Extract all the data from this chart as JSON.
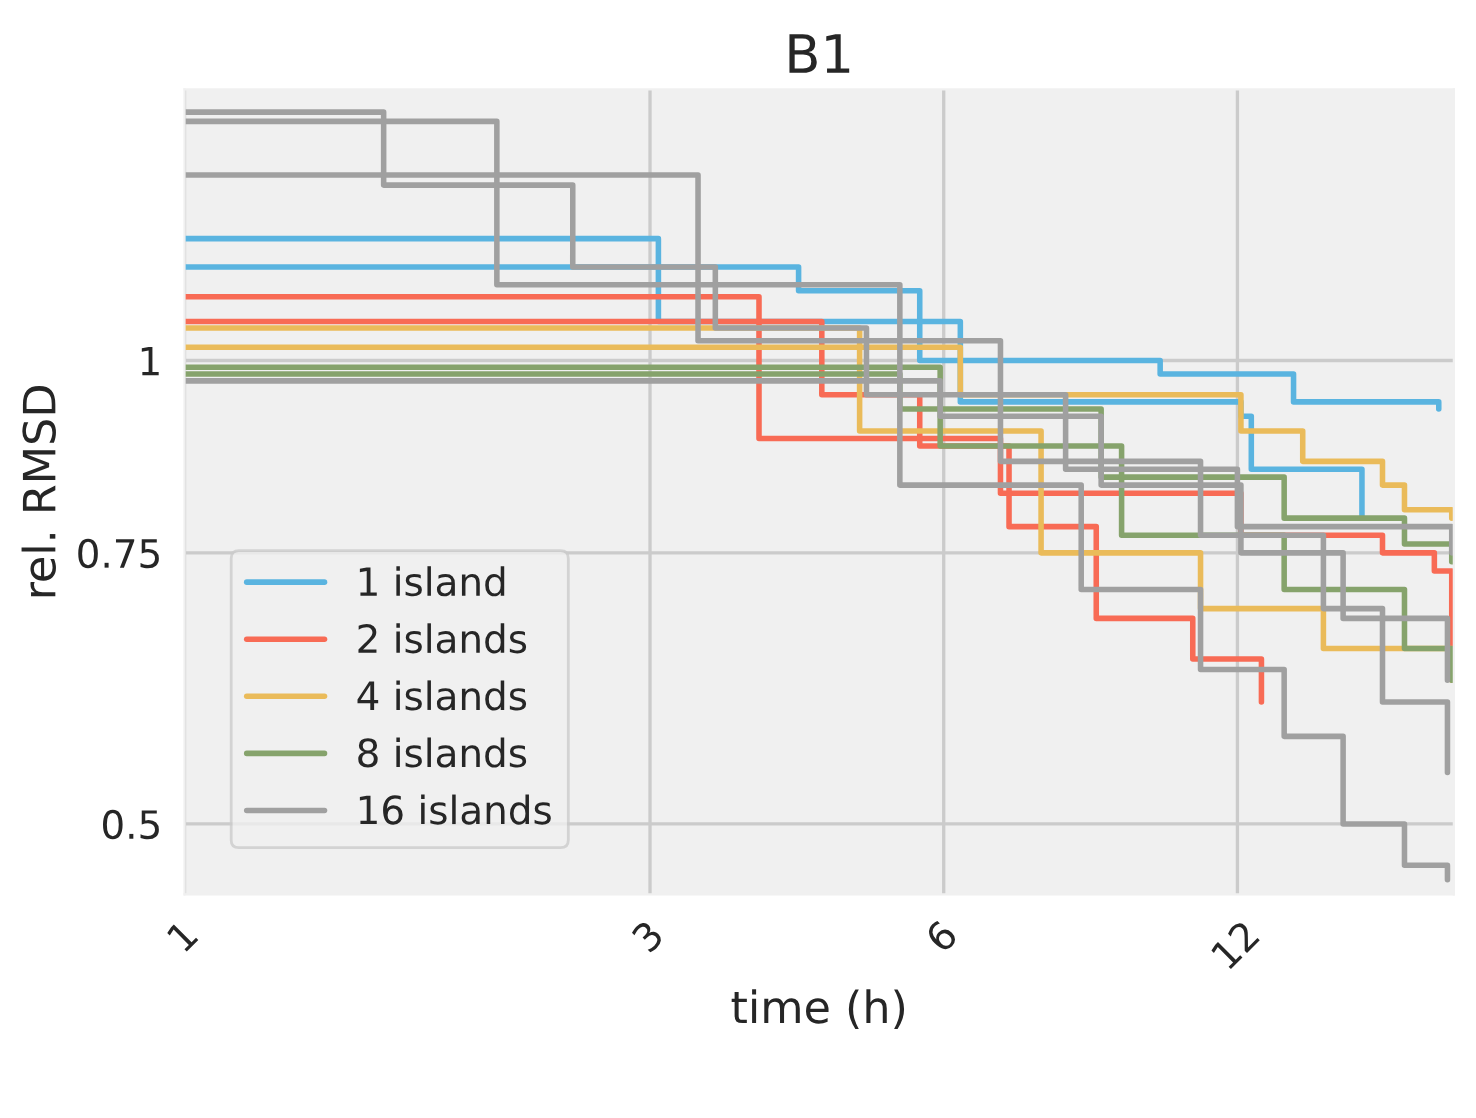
{
  "chart_data": {
    "type": "step",
    "title": "B1",
    "xlabel": "time (h)",
    "ylabel": "rel. RMSD",
    "log": "xy",
    "grid": true,
    "legend": "bottom left",
    "xlim": [
      1,
      20
    ],
    "ylim": [
      0.45,
      1.5
    ],
    "xticks": [
      1,
      3,
      6,
      12
    ],
    "yticks": [
      0.5,
      0.75,
      1
    ],
    "series": [
      {
        "name": "1 island",
        "color": "#5ab4e0",
        "x": [
          1,
          4.26,
          5.67,
          10.0,
          13.7,
          19.3
        ],
        "values": [
          1.15,
          1.11,
          1.0,
          0.98,
          0.94,
          0.93
        ]
      },
      {
        "color": "#5ab4e0",
        "x": [
          1,
          3.06,
          6.24,
          12.1,
          12.4,
          16.1
        ],
        "values": [
          1.2,
          1.06,
          0.94,
          0.92,
          0.85,
          0.79
        ]
      },
      {
        "name": "2 islands",
        "color": "#f86b55",
        "x": [
          1,
          3.88,
          6.86,
          12.1,
          16.9,
          19.1,
          19.9
        ],
        "values": [
          1.1,
          0.89,
          0.82,
          0.77,
          0.75,
          0.73,
          0.65
        ]
      },
      {
        "color": "#f86b55",
        "x": [
          1,
          4.5,
          5.67,
          7.0,
          8.6,
          10.8,
          12.7
        ],
        "values": [
          1.06,
          0.95,
          0.88,
          0.78,
          0.68,
          0.64,
          0.6
        ]
      },
      {
        "name": "4 islands",
        "color": "#eabb5a",
        "x": [
          1,
          6.24,
          12.1,
          14.0,
          16.9,
          17.8,
          19.9
        ],
        "values": [
          1.02,
          0.95,
          0.9,
          0.86,
          0.83,
          0.8,
          0.79
        ]
      },
      {
        "color": "#eabb5a",
        "x": [
          1,
          4.92,
          7.55,
          11.0,
          14.7,
          19.9
        ],
        "values": [
          1.05,
          0.9,
          0.75,
          0.69,
          0.65,
          0.62
        ]
      },
      {
        "name": "8 islands",
        "color": "#86a36c",
        "x": [
          1,
          5.41,
          8.7,
          13.4,
          17.8,
          19.9
        ],
        "values": [
          0.98,
          0.93,
          0.84,
          0.79,
          0.76,
          0.74
        ]
      },
      {
        "color": "#86a36c",
        "x": [
          1,
          5.95,
          9.13,
          13.4,
          17.8,
          19.9
        ],
        "values": [
          0.99,
          0.88,
          0.77,
          0.71,
          0.65,
          0.62
        ]
      },
      {
        "name": "16 islands",
        "color": "#a0a0a0",
        "x": [
          1,
          2.09,
          5.41,
          8.3,
          11.0,
          13.4,
          15.4,
          17.8,
          19.7
        ],
        "values": [
          1.43,
          1.12,
          0.83,
          0.71,
          0.63,
          0.57,
          0.5,
          0.47,
          0.46
        ]
      },
      {
        "color": "#a0a0a0",
        "x": [
          1,
          3.36,
          6.86,
          11.0,
          14.7,
          16.9,
          19.7
        ],
        "values": [
          1.32,
          1.03,
          0.86,
          0.77,
          0.69,
          0.6,
          0.54
        ]
      },
      {
        "color": "#a0a0a0",
        "x": [
          1,
          5.95,
          8.7,
          12.1,
          15.4,
          19.7
        ],
        "values": [
          0.97,
          0.92,
          0.83,
          0.75,
          0.68,
          0.62
        ]
      },
      {
        "color": "#a0a0a0",
        "x": [
          1,
          1.6,
          2.5,
          3.5,
          5.0,
          8.0,
          12.0,
          19.9
        ],
        "values": [
          1.45,
          1.3,
          1.15,
          1.05,
          0.95,
          0.85,
          0.78,
          0.75
        ]
      }
    ]
  }
}
